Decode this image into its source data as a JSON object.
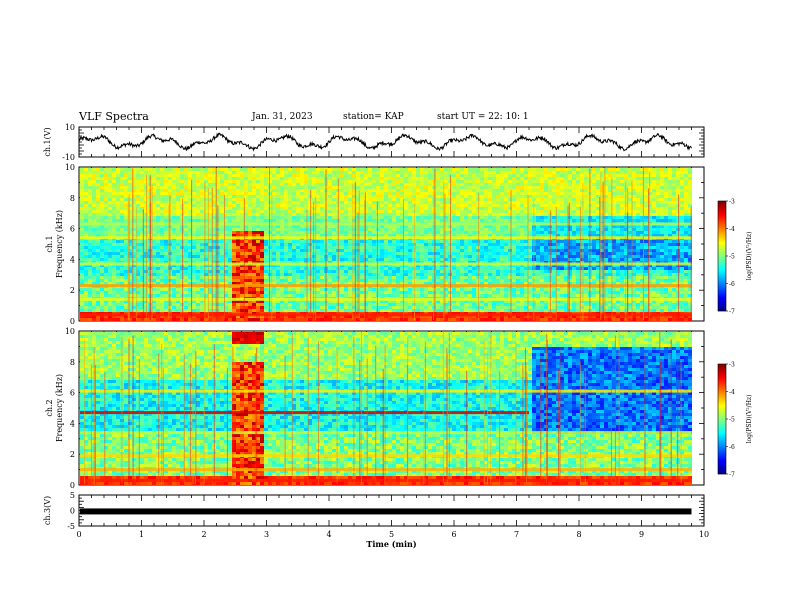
{
  "header": {
    "title": "VLF Spectra",
    "date": "Jan. 31, 2023",
    "station": "station= KAP",
    "start": "start  UT =  22: 10: 1"
  },
  "chart_data": [
    {
      "type": "line",
      "name": "ch1-waveform",
      "ylabel": "ch.1(V)",
      "ylim": [
        -10,
        10
      ],
      "yticks": [
        -10,
        10
      ],
      "xlim": [
        0,
        10
      ]
    },
    {
      "type": "heatmap",
      "name": "ch1-spectrogram",
      "ylabel": "ch.1 Frequency (kHz)",
      "ylim": [
        0,
        10
      ],
      "yticks": [
        0,
        2,
        4,
        6,
        8,
        10
      ],
      "xlim": [
        0,
        10
      ],
      "data_end_min": 9.8,
      "colorbar": {
        "label": "log(PSD)(V²/Hz)",
        "range": [
          -7,
          -3
        ],
        "ticks": [
          -3,
          -4,
          -5,
          -6,
          -7
        ]
      }
    },
    {
      "type": "heatmap",
      "name": "ch2-spectrogram",
      "ylabel": "ch.2 Frequency (kHz)",
      "ylim": [
        0,
        10
      ],
      "yticks": [
        0,
        2,
        4,
        6,
        8,
        10
      ],
      "xlim": [
        0,
        10
      ],
      "data_end_min": 9.8,
      "colorbar": {
        "label": "log(PSD)(V²/Hz)",
        "range": [
          -7,
          -3
        ],
        "ticks": [
          -3,
          -4,
          -5,
          -6,
          -7
        ]
      }
    },
    {
      "type": "line",
      "name": "ch3-waveform",
      "ylabel": "ch.3(V)",
      "ylim": [
        -5,
        5
      ],
      "yticks": [
        -5,
        0,
        5
      ],
      "xlim": [
        0,
        10
      ],
      "xlabel": "Time  (min)",
      "xticks": [
        0,
        1,
        2,
        3,
        4,
        5,
        6,
        7,
        8,
        9,
        10
      ],
      "constant_value": -0.3
    }
  ]
}
